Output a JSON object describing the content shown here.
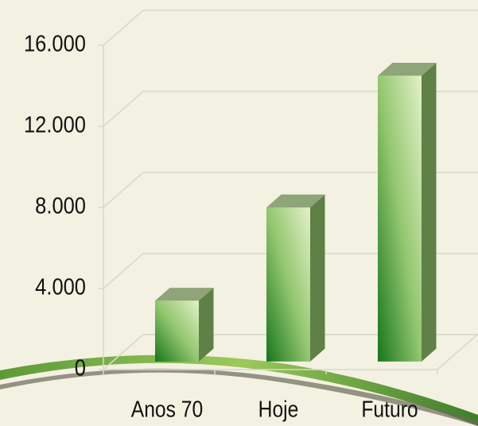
{
  "chart_data": {
    "type": "bar3d",
    "categories": [
      "Anos 70",
      "Hoje",
      "Futuro"
    ],
    "values": [
      3000,
      7600,
      14100
    ],
    "ylim": [
      0,
      16000
    ],
    "yticks": [
      {
        "value": 0,
        "label": "0"
      },
      {
        "value": 4000,
        "label": "4.000"
      },
      {
        "value": 8000,
        "label": "8.000"
      },
      {
        "value": 12000,
        "label": "12.000"
      },
      {
        "value": 16000,
        "label": "16.000"
      }
    ],
    "grid": true
  }
}
